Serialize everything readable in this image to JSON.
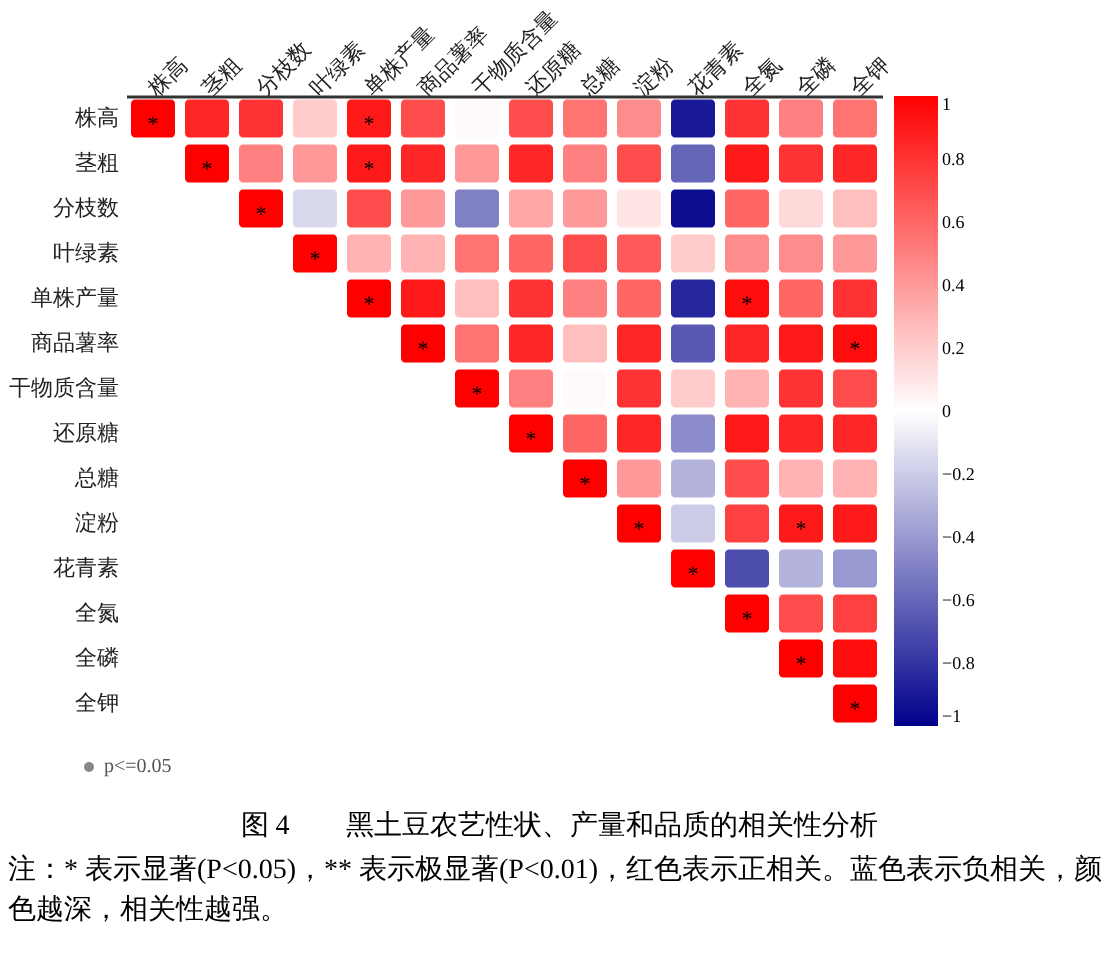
{
  "chart_data": {
    "type": "heatmap",
    "title": "图 4　　黑土豆农艺性状、产量和品质的相关性分析",
    "categories": [
      "株高",
      "茎粗",
      "分枝数",
      "叶绿素",
      "单株产量",
      "商品薯率",
      "干物质含量",
      "还原糖",
      "总糖",
      "淀粉",
      "花青素",
      "全氮",
      "全磷",
      "全钾"
    ],
    "y_categories": [
      "株高",
      "茎粗",
      "分枝数",
      "叶绿素",
      "单株产量",
      "商品薯率",
      "干物质含量",
      "还原糖",
      "总糖",
      "淀粉",
      "花青素",
      "全氮",
      "全磷",
      "全钾"
    ],
    "cells": [
      [
        1,
        0.85,
        0.8,
        0.2,
        0.9,
        0.7,
        0.02,
        0.7,
        0.55,
        0.45,
        -0.9,
        0.8,
        0.5,
        0.55
      ],
      [
        null,
        1,
        0.5,
        0.4,
        0.9,
        0.85,
        0.4,
        0.85,
        0.5,
        0.7,
        -0.6,
        0.9,
        0.8,
        0.85
      ],
      [
        null,
        null,
        1,
        -0.15,
        0.7,
        0.4,
        -0.5,
        0.35,
        0.4,
        0.1,
        -0.95,
        0.6,
        0.15,
        0.25
      ],
      [
        null,
        null,
        null,
        1,
        0.3,
        0.3,
        0.55,
        0.6,
        0.7,
        0.65,
        0.2,
        0.45,
        0.45,
        0.4
      ],
      [
        null,
        null,
        null,
        null,
        1,
        0.9,
        0.25,
        0.8,
        0.5,
        0.6,
        -0.85,
        0.95,
        0.6,
        0.8
      ],
      [
        null,
        null,
        null,
        null,
        null,
        1,
        0.55,
        0.85,
        0.25,
        0.85,
        -0.65,
        0.85,
        0.9,
        0.95
      ],
      [
        null,
        null,
        null,
        null,
        null,
        null,
        1,
        0.5,
        0.02,
        0.8,
        0.2,
        0.3,
        0.8,
        0.7
      ],
      [
        null,
        null,
        null,
        null,
        null,
        null,
        null,
        1,
        0.6,
        0.85,
        -0.45,
        0.9,
        0.85,
        0.85
      ],
      [
        null,
        null,
        null,
        null,
        null,
        null,
        null,
        null,
        1,
        0.4,
        -0.3,
        0.7,
        0.3,
        0.3
      ],
      [
        null,
        null,
        null,
        null,
        null,
        null,
        null,
        null,
        null,
        1,
        -0.2,
        0.75,
        0.9,
        0.9
      ],
      [
        null,
        null,
        null,
        null,
        null,
        null,
        null,
        null,
        null,
        null,
        1,
        -0.7,
        -0.3,
        -0.4
      ],
      [
        null,
        null,
        null,
        null,
        null,
        null,
        null,
        null,
        null,
        null,
        null,
        1,
        0.7,
        0.75
      ],
      [
        null,
        null,
        null,
        null,
        null,
        null,
        null,
        null,
        null,
        null,
        null,
        null,
        1,
        0.95
      ],
      [
        null,
        null,
        null,
        null,
        null,
        null,
        null,
        null,
        null,
        null,
        null,
        null,
        null,
        1
      ]
    ],
    "cell_labels": [
      [
        "*",
        null,
        null,
        null,
        "*",
        null,
        null,
        null,
        null,
        null,
        null,
        null,
        null,
        null
      ],
      [
        null,
        "*",
        null,
        null,
        "*",
        null,
        null,
        null,
        null,
        null,
        null,
        null,
        null,
        null
      ],
      [
        null,
        null,
        "*",
        null,
        null,
        null,
        null,
        null,
        null,
        null,
        null,
        null,
        null,
        null
      ],
      [
        null,
        null,
        null,
        "*",
        null,
        null,
        null,
        null,
        null,
        null,
        null,
        null,
        null,
        null
      ],
      [
        null,
        null,
        null,
        null,
        "*",
        null,
        null,
        null,
        null,
        null,
        null,
        "*",
        null,
        null
      ],
      [
        null,
        null,
        null,
        null,
        null,
        "*",
        null,
        null,
        null,
        null,
        null,
        null,
        null,
        "*"
      ],
      [
        null,
        null,
        null,
        null,
        null,
        null,
        "*",
        null,
        null,
        null,
        null,
        null,
        null,
        null
      ],
      [
        null,
        null,
        null,
        null,
        null,
        null,
        null,
        "*",
        null,
        null,
        null,
        null,
        null,
        null
      ],
      [
        null,
        null,
        null,
        null,
        null,
        null,
        null,
        null,
        "*",
        null,
        null,
        null,
        null,
        null
      ],
      [
        null,
        null,
        null,
        null,
        null,
        null,
        null,
        null,
        null,
        "*",
        null,
        null,
        "*",
        null
      ],
      [
        null,
        null,
        null,
        null,
        null,
        null,
        null,
        null,
        null,
        null,
        "*",
        null,
        null,
        null
      ],
      [
        null,
        null,
        null,
        null,
        null,
        null,
        null,
        null,
        null,
        null,
        null,
        "*",
        null,
        null
      ],
      [
        null,
        null,
        null,
        null,
        null,
        null,
        null,
        null,
        null,
        null,
        null,
        null,
        "*",
        null
      ],
      [
        null,
        null,
        null,
        null,
        null,
        null,
        null,
        null,
        null,
        null,
        null,
        null,
        null,
        "*"
      ]
    ],
    "clim": [
      -1,
      1
    ],
    "cticks": [
      -1,
      -0.8,
      -0.6,
      -0.4,
      -0.2,
      0,
      0.2,
      0.4,
      0.6,
      0.8,
      1
    ],
    "annotations": [
      "p<=0.05",
      "注：* 表示显著(P<0.05)，** 表示极显著(P<0.01)，红色表示正相关。蓝色表示负相关，颜色越深，相关性越强。"
    ]
  }
}
